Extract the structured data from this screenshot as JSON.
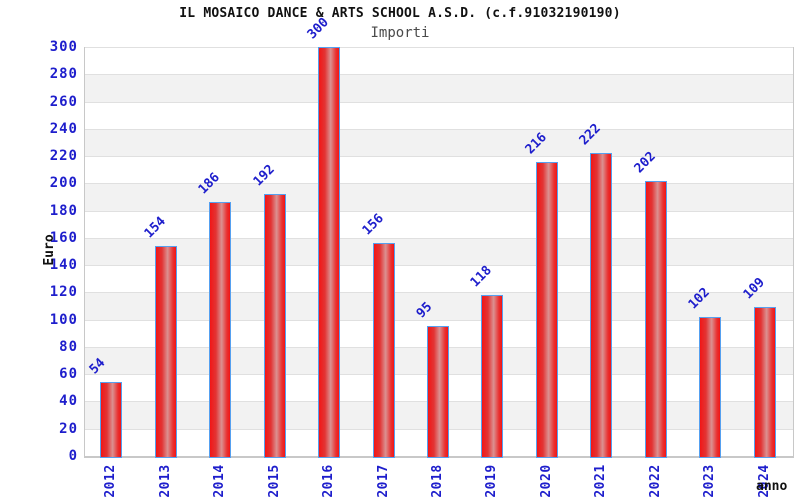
{
  "header": {
    "title": "IL MOSAICO DANCE & ARTS SCHOOL A.S.D. (c.f.91032190190)",
    "subtitle": "Importi"
  },
  "axes": {
    "y_label": "Euro",
    "x_label": "anno"
  },
  "chart_data": {
    "type": "bar",
    "title": "IL MOSAICO DANCE & ARTS SCHOOL A.S.D. (c.f.91032190190)",
    "subtitle": "Importi",
    "categories": [
      "2012",
      "2013",
      "2014",
      "2015",
      "2016",
      "2017",
      "2018",
      "2019",
      "2020",
      "2021",
      "2022",
      "2023",
      "2024"
    ],
    "values": [
      54,
      154,
      186,
      192,
      300,
      156,
      95,
      118,
      216,
      222,
      202,
      102,
      109
    ],
    "xlabel": "anno",
    "ylabel": "Euro",
    "ylim": [
      0,
      300
    ],
    "ytick_step": 20,
    "yticks": [
      0,
      20,
      40,
      60,
      80,
      100,
      120,
      140,
      160,
      180,
      200,
      220,
      240,
      260,
      280,
      300
    ],
    "legend": "none",
    "grid": {
      "horizontal_gridlines": true,
      "alternating_gray_bands": true,
      "vertical_gridlines": false
    },
    "bar_value_labels_rotation_deg": -45,
    "x_tick_rotation_deg": -90,
    "colors": {
      "bar_fill": "#f21616",
      "bar_highlight": "#db9191",
      "bar_border": "#55a0f0",
      "label_blue": "#1e1ecc",
      "band_gray": "#f2f2f2",
      "gridline": "#e0e0e0",
      "axis_line": "#c8c8c8",
      "title_color": "#111111",
      "subtitle_color": "#4a4a4a"
    }
  }
}
